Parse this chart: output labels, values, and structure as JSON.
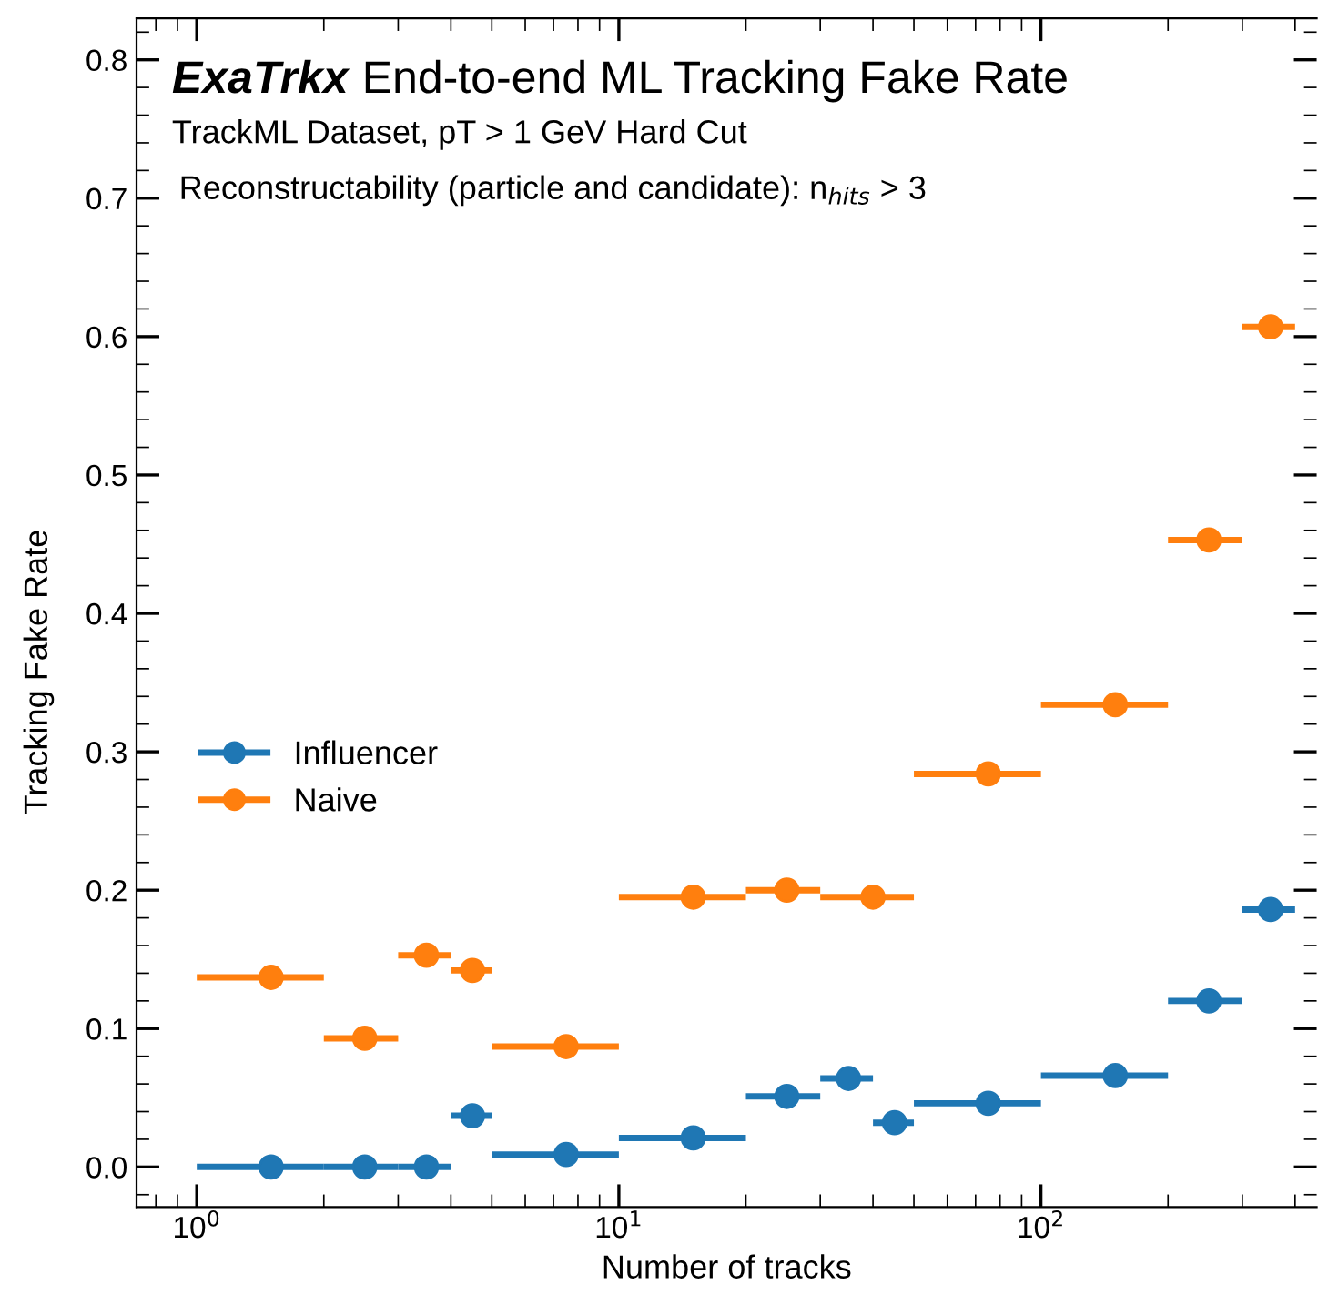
{
  "chart_data": {
    "type": "scatter",
    "title": "ExaTrkx End-to-end ML Tracking Fake Rate",
    "annotations": [
      "TrackML Dataset, pT > 1 GeV Hard Cut",
      "Reconstructability (particle and candidate): n$_{hits}$ > 3"
    ],
    "xlabel": "Number of tracks",
    "ylabel": "Tracking Fake Rate",
    "log": "x",
    "xlim": [
      0.72,
      450
    ],
    "xticks": [
      {
        "value": 1,
        "label": "10$^{0}$"
      },
      {
        "value": 10,
        "label": "10$^{1}$"
      },
      {
        "value": 100,
        "label": "10$^{2}$"
      }
    ],
    "ylim": [
      -0.029,
      0.83
    ],
    "yticks": [
      {
        "value": 0,
        "label": "0.0"
      },
      0.1,
      0.2,
      0.3,
      0.4,
      0.5,
      0.6,
      0.7,
      0.8
    ],
    "marker": "circle",
    "grid": false,
    "legend": "left",
    "series": [
      {
        "name": "Influencer",
        "color": "#1f77b4",
        "x": [
          1.5,
          2.5,
          3.5,
          4.5,
          7.5,
          15,
          25,
          35,
          45,
          75,
          150,
          250,
          350
        ],
        "values": [
          0.0,
          0.0,
          0.0,
          0.037,
          0.009,
          0.021,
          0.051,
          0.064,
          0.032,
          0.046,
          0.066,
          0.12,
          0.186
        ],
        "xerrors": [
          0.5,
          0.5,
          0.5,
          0.5,
          2.5,
          5,
          5,
          5,
          5,
          25,
          50,
          50,
          50
        ]
      },
      {
        "name": "Naive",
        "color": "#ff7f0e",
        "x": [
          1.5,
          2.5,
          3.5,
          4.5,
          7.5,
          15,
          25,
          40,
          75,
          150,
          250,
          350
        ],
        "values": [
          0.137,
          0.093,
          0.153,
          0.142,
          0.087,
          0.195,
          0.2,
          0.195,
          0.284,
          0.334,
          0.453,
          0.607
        ],
        "xerrors": [
          0.5,
          0.5,
          0.5,
          0.5,
          2.5,
          5,
          5,
          10,
          25,
          50,
          50,
          50
        ]
      }
    ]
  }
}
